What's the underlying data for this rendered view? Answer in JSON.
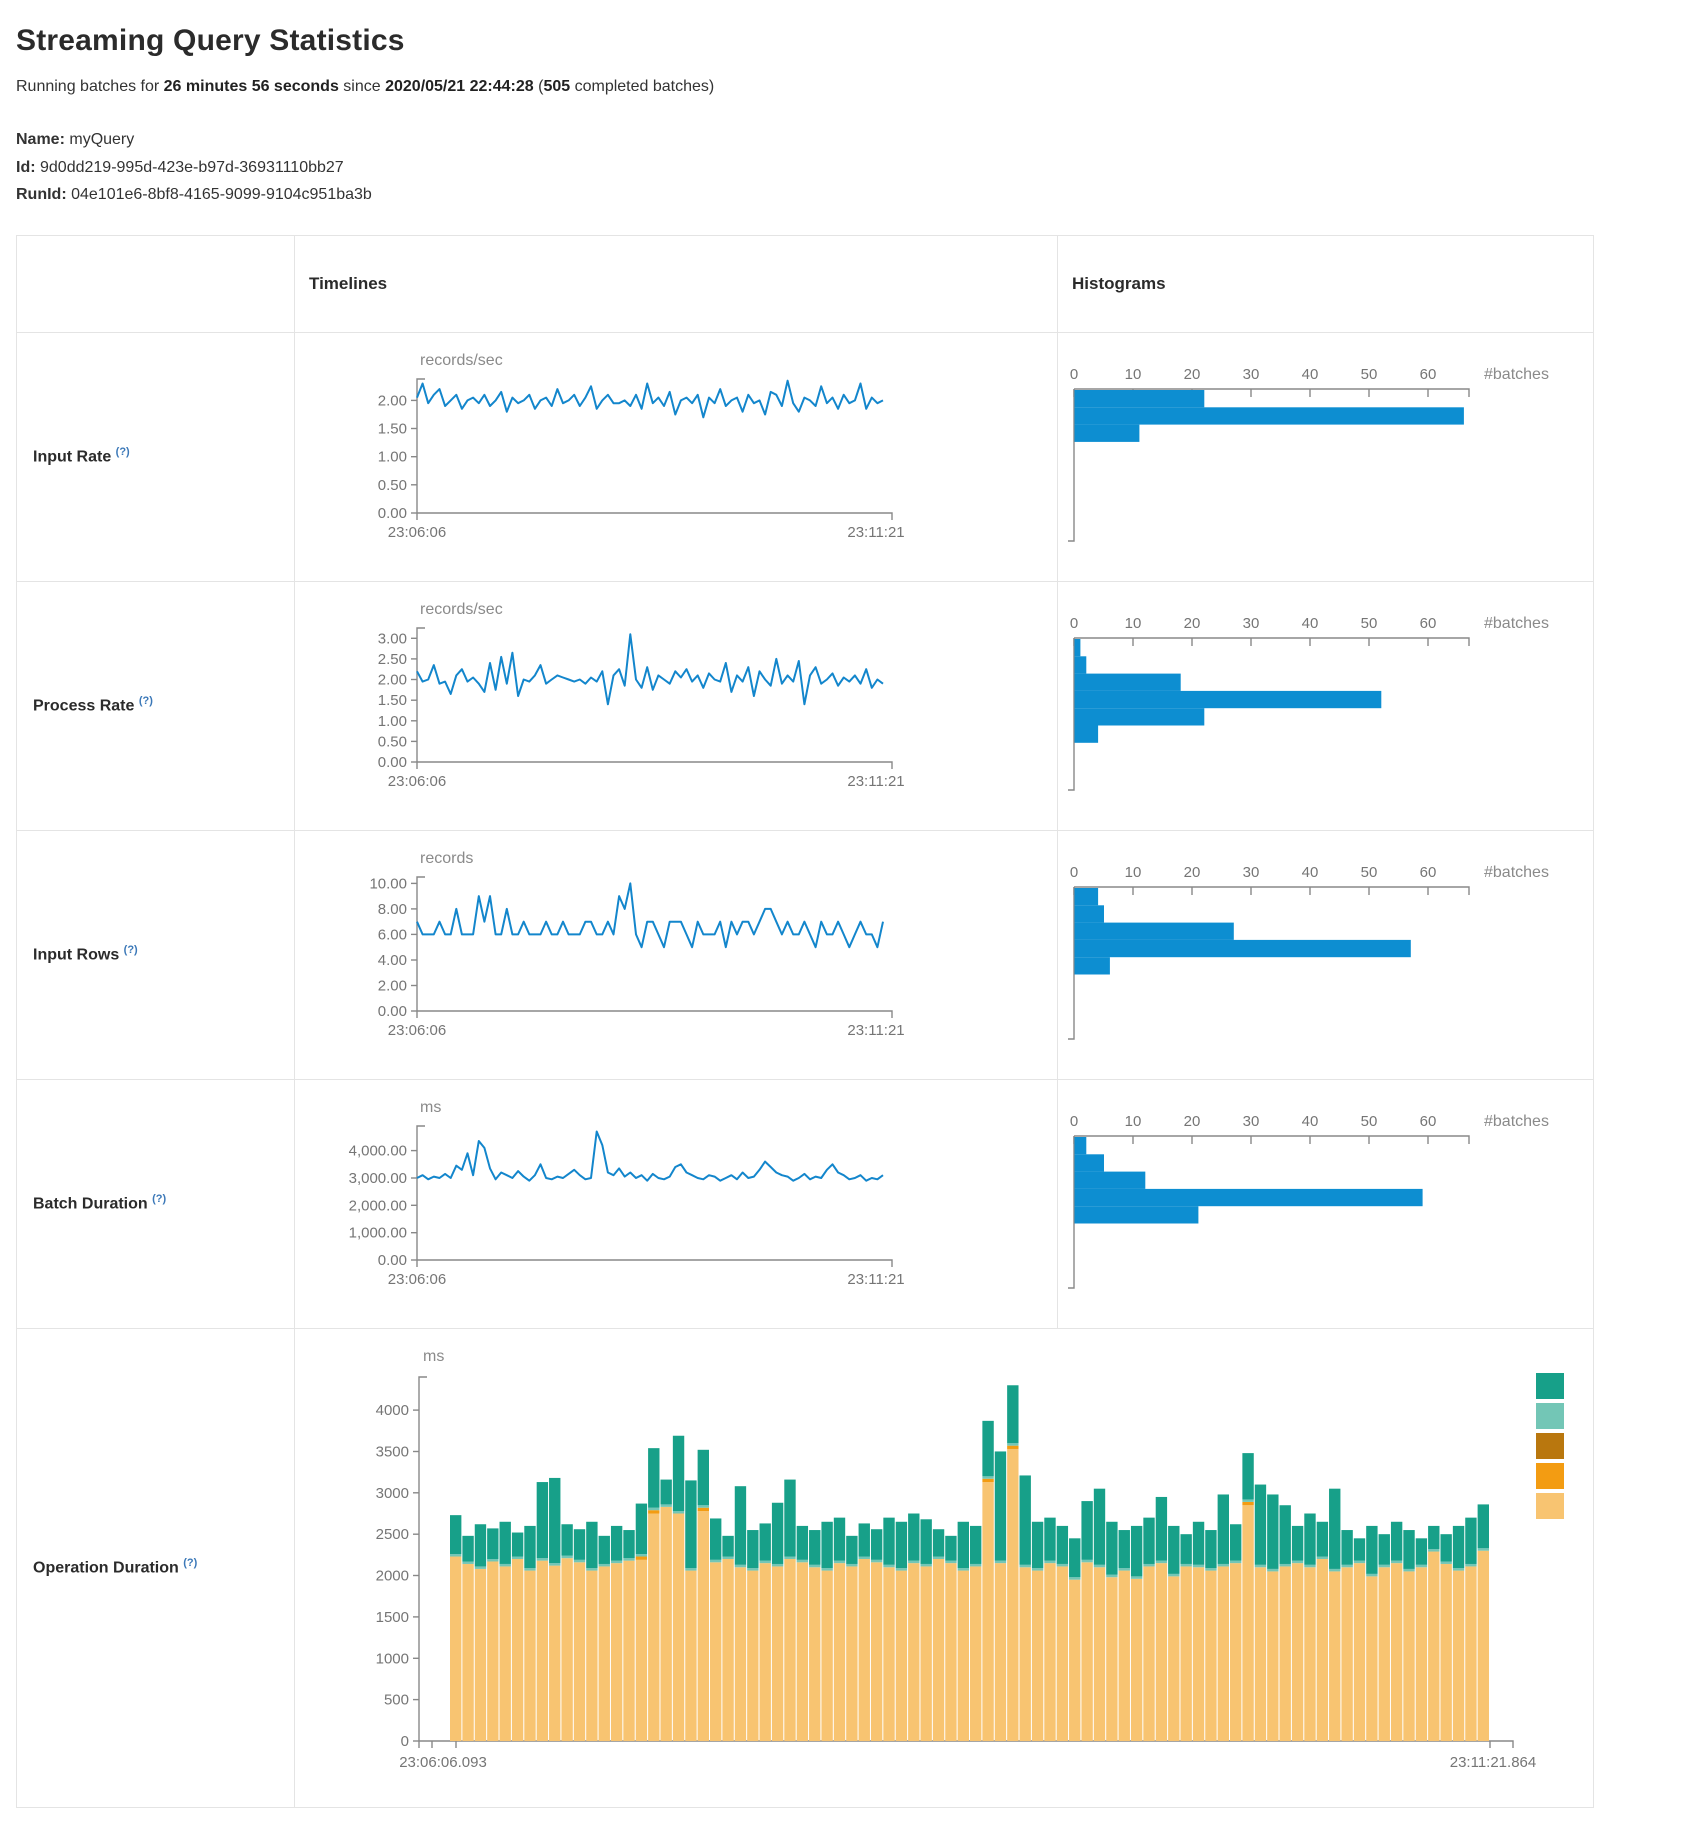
{
  "page": {
    "title": "Streaming Query Statistics",
    "subtitle": {
      "part1": "Running batches for ",
      "duration": "26 minutes 56 seconds",
      "part2": " since ",
      "start_time": "2020/05/21 22:44:28",
      "part3": " (",
      "batch_count": "505",
      "part4": " completed batches)"
    },
    "name_label": "Name:",
    "name_value": "myQuery",
    "id_label": "Id:",
    "id_value": "9d0dd219-995d-423e-b97d-36931110bb27",
    "runid_label": "RunId:",
    "runid_value": "04e101e6-8bf8-4165-9099-9104c951ba3b"
  },
  "table": {
    "headers": {
      "timelines": "Timelines",
      "histograms": "Histograms"
    },
    "rows": [
      {
        "label": "Input Rate",
        "hint": "(?)"
      },
      {
        "label": "Process Rate",
        "hint": "(?)"
      },
      {
        "label": "Input Rows",
        "hint": "(?)"
      },
      {
        "label": "Batch Duration",
        "hint": "(?)"
      },
      {
        "label": "Operation Duration",
        "hint": "(?)"
      }
    ]
  },
  "colors": {
    "timeline_line": "#1386cc",
    "histogram_bar": "#0d8ed1",
    "axis": "#888888",
    "axis_text": "#757575",
    "unit_text": "#8a8a8a",
    "table_border": "#e4e4e4",
    "hint": "#3b78b8",
    "stack_teal": "#17a089",
    "stack_lightteal": "#73c6b6",
    "stack_darkorange": "#b9770e",
    "stack_orange": "#f39c12",
    "stack_tan": "#f8c471"
  },
  "chart_data": [
    {
      "id": "input-rate-timeline",
      "type": "line",
      "row": "Input Rate",
      "unit": "records/sec",
      "x_start": "23:06:06",
      "x_end": "23:11:21",
      "ymax": 2.38,
      "yticks": [
        0,
        0.5,
        1,
        1.5,
        2
      ],
      "tick_format": "fixed2",
      "grid": false,
      "values": [
        2.05,
        2.3,
        1.95,
        2.1,
        2.2,
        1.9,
        2.0,
        2.1,
        1.85,
        2.0,
        2.05,
        1.95,
        2.1,
        1.9,
        2.0,
        2.15,
        1.8,
        2.05,
        1.95,
        2.0,
        2.1,
        1.85,
        2.0,
        2.05,
        1.9,
        2.2,
        1.95,
        2.0,
        2.1,
        1.9,
        2.05,
        2.25,
        1.85,
        2.0,
        2.1,
        1.95,
        1.95,
        2.0,
        1.9,
        2.1,
        1.85,
        2.3,
        1.95,
        2.05,
        1.9,
        2.15,
        1.75,
        2.0,
        2.05,
        1.95,
        2.1,
        1.7,
        2.05,
        1.95,
        2.2,
        1.9,
        2.0,
        2.05,
        1.8,
        2.1,
        1.95,
        2.0,
        1.75,
        2.15,
        2.1,
        1.9,
        2.35,
        1.95,
        1.8,
        2.05,
        2.0,
        1.9,
        2.25,
        1.95,
        2.05,
        1.85,
        2.1,
        1.95,
        2.0,
        2.3,
        1.85,
        2.05,
        1.95,
        2.0
      ]
    },
    {
      "id": "input-rate-histogram",
      "type": "bar",
      "row": "Input Rate",
      "xlabel": "#batches",
      "xticks": [
        0,
        10,
        20,
        30,
        40,
        50,
        60
      ],
      "values": [
        22,
        66,
        11
      ]
    },
    {
      "id": "process-rate-timeline",
      "type": "line",
      "row": "Process Rate",
      "unit": "records/sec",
      "x_start": "23:06:06",
      "x_end": "23:11:21",
      "ymax": 3.25,
      "yticks": [
        0,
        0.5,
        1,
        1.5,
        2,
        2.5,
        3
      ],
      "tick_format": "fixed2",
      "grid": false,
      "values": [
        2.2,
        1.95,
        2.0,
        2.35,
        1.9,
        1.95,
        1.65,
        2.1,
        2.25,
        1.95,
        2.05,
        1.9,
        1.7,
        2.4,
        1.75,
        2.55,
        1.9,
        2.65,
        1.6,
        2.0,
        1.95,
        2.1,
        2.35,
        1.9,
        2.0,
        2.1,
        2.05,
        2.0,
        1.95,
        2.0,
        1.9,
        2.05,
        1.95,
        2.2,
        1.4,
        2.1,
        2.25,
        1.85,
        3.1,
        2.0,
        1.8,
        2.3,
        1.75,
        2.1,
        2.0,
        1.9,
        2.2,
        2.05,
        2.25,
        1.95,
        2.1,
        1.8,
        2.15,
        2.0,
        1.95,
        2.4,
        1.7,
        2.1,
        1.95,
        2.3,
        1.6,
        2.2,
        2.0,
        1.85,
        2.5,
        1.9,
        2.1,
        1.95,
        2.45,
        1.4,
        2.1,
        2.3,
        1.9,
        2.0,
        2.15,
        1.85,
        2.05,
        1.95,
        2.1,
        1.9,
        2.25,
        1.8,
        2.0,
        1.9
      ]
    },
    {
      "id": "process-rate-histogram",
      "type": "bar",
      "row": "Process Rate",
      "xlabel": "#batches",
      "xticks": [
        0,
        10,
        20,
        30,
        40,
        50,
        60
      ],
      "values": [
        1,
        2,
        18,
        52,
        22,
        4
      ]
    },
    {
      "id": "input-rows-timeline",
      "type": "line",
      "row": "Input Rows",
      "unit": "records",
      "x_start": "23:06:06",
      "x_end": "23:11:21",
      "ymax": 10.5,
      "yticks": [
        0,
        2,
        4,
        6,
        8,
        10
      ],
      "tick_format": "fixed2",
      "grid": false,
      "values": [
        7,
        6,
        6,
        6,
        7,
        6,
        6,
        8,
        6,
        6,
        6,
        9,
        7,
        9,
        6,
        6,
        8,
        6,
        6,
        7,
        6,
        6,
        6,
        7,
        6,
        6,
        7,
        6,
        6,
        6,
        7,
        7,
        6,
        6,
        7,
        6,
        9,
        8,
        10,
        6,
        5,
        7,
        7,
        6,
        5,
        7,
        7,
        7,
        6,
        5,
        7,
        6,
        6,
        6,
        7,
        5,
        7,
        6,
        7,
        7,
        6,
        7,
        8,
        8,
        7,
        6,
        7,
        6,
        6,
        7,
        6,
        5,
        7,
        6,
        6,
        7,
        6,
        5,
        6,
        7,
        6,
        6,
        5,
        7
      ]
    },
    {
      "id": "input-rows-histogram",
      "type": "bar",
      "row": "Input Rows",
      "xlabel": "#batches",
      "xticks": [
        0,
        10,
        20,
        30,
        40,
        50,
        60
      ],
      "values": [
        4,
        5,
        27,
        57,
        6
      ]
    },
    {
      "id": "batch-duration-timeline",
      "type": "line",
      "row": "Batch Duration",
      "unit": "ms",
      "x_start": "23:06:06",
      "x_end": "23:11:21",
      "ymax": 4900,
      "yticks": [
        0,
        1000,
        2000,
        3000,
        4000
      ],
      "tick_format": "fixed2",
      "grid": false,
      "values": [
        3000,
        3100,
        2950,
        3050,
        3000,
        3150,
        3000,
        3450,
        3300,
        3900,
        3100,
        4350,
        4100,
        3350,
        2950,
        3200,
        3100,
        3000,
        3250,
        3050,
        2900,
        3100,
        3500,
        3000,
        2950,
        3050,
        3000,
        3150,
        3300,
        3100,
        2950,
        3000,
        4700,
        4200,
        3200,
        3100,
        3350,
        3050,
        3200,
        3000,
        3100,
        2900,
        3150,
        3000,
        2950,
        3050,
        3400,
        3500,
        3200,
        3100,
        3000,
        2950,
        3100,
        3050,
        2900,
        3000,
        3100,
        2950,
        3200,
        3000,
        3050,
        3300,
        3600,
        3400,
        3200,
        3100,
        3050,
        2900,
        3000,
        3150,
        2950,
        3050,
        3000,
        3300,
        3500,
        3200,
        3100,
        2950,
        3000,
        3100,
        2900,
        3000,
        2950,
        3100
      ]
    },
    {
      "id": "batch-duration-histogram",
      "type": "bar",
      "row": "Batch Duration",
      "xlabel": "#batches",
      "xticks": [
        0,
        10,
        20,
        30,
        40,
        50,
        60
      ],
      "values": [
        2,
        5,
        12,
        59,
        21
      ]
    },
    {
      "id": "operation-duration-chart",
      "type": "stacked-bar",
      "row": "Operation Duration",
      "unit": "ms",
      "x_start": "23:06:06.093",
      "x_end": "23:11:21.864",
      "ymax": 4400,
      "yticks": [
        0,
        500,
        1000,
        1500,
        2000,
        2500,
        3000,
        3500,
        4000
      ],
      "tick_format": "plain",
      "grid": false,
      "legend_colors": [
        "#17a089",
        "#73c6b6",
        "#b9770e",
        "#f39c12",
        "#f8c471"
      ],
      "sliver": 30,
      "orange": {
        "indices": [
          15,
          16,
          20,
          43,
          45,
          64
        ],
        "value": 40
      },
      "totals": [
        2730,
        2480,
        2620,
        2570,
        2650,
        2520,
        2600,
        3130,
        3180,
        2620,
        2560,
        2650,
        2480,
        2600,
        2550,
        2870,
        3540,
        3160,
        3690,
        3150,
        3520,
        2690,
        2480,
        3080,
        2550,
        2630,
        2880,
        3160,
        2600,
        2550,
        2650,
        2700,
        2480,
        2630,
        2560,
        2700,
        2650,
        2750,
        2680,
        2560,
        2480,
        2650,
        2600,
        3870,
        3500,
        4300,
        3210,
        2650,
        2700,
        2600,
        2450,
        2900,
        3050,
        2650,
        2550,
        2600,
        2700,
        2950,
        2600,
        2500,
        2650,
        2550,
        2980,
        2620,
        3480,
        3100,
        2980,
        2850,
        2600,
        2750,
        2650,
        3050,
        2550,
        2450,
        2600,
        2500,
        2650,
        2550,
        2450,
        2600,
        2500,
        2600,
        2700,
        2860
      ],
      "addbatch": [
        2230,
        2140,
        2080,
        2170,
        2110,
        2200,
        2060,
        2180,
        2120,
        2210,
        2160,
        2060,
        2110,
        2150,
        2180,
        2190,
        2750,
        2830,
        2750,
        2060,
        2780,
        2160,
        2200,
        2100,
        2060,
        2150,
        2110,
        2200,
        2160,
        2100,
        2060,
        2150,
        2110,
        2200,
        2160,
        2100,
        2060,
        2150,
        2110,
        2200,
        2150,
        2060,
        2110,
        3130,
        2150,
        3530,
        2100,
        2060,
        2150,
        2110,
        1950,
        2160,
        2100,
        1980,
        2060,
        1960,
        2110,
        2150,
        1990,
        2110,
        2100,
        2060,
        2110,
        2150,
        2850,
        2100,
        2050,
        2110,
        2150,
        2100,
        2200,
        2050,
        2100,
        2150,
        1990,
        2100,
        2150,
        2050,
        2100,
        2290,
        2140,
        2060,
        2110,
        2300
      ]
    }
  ]
}
